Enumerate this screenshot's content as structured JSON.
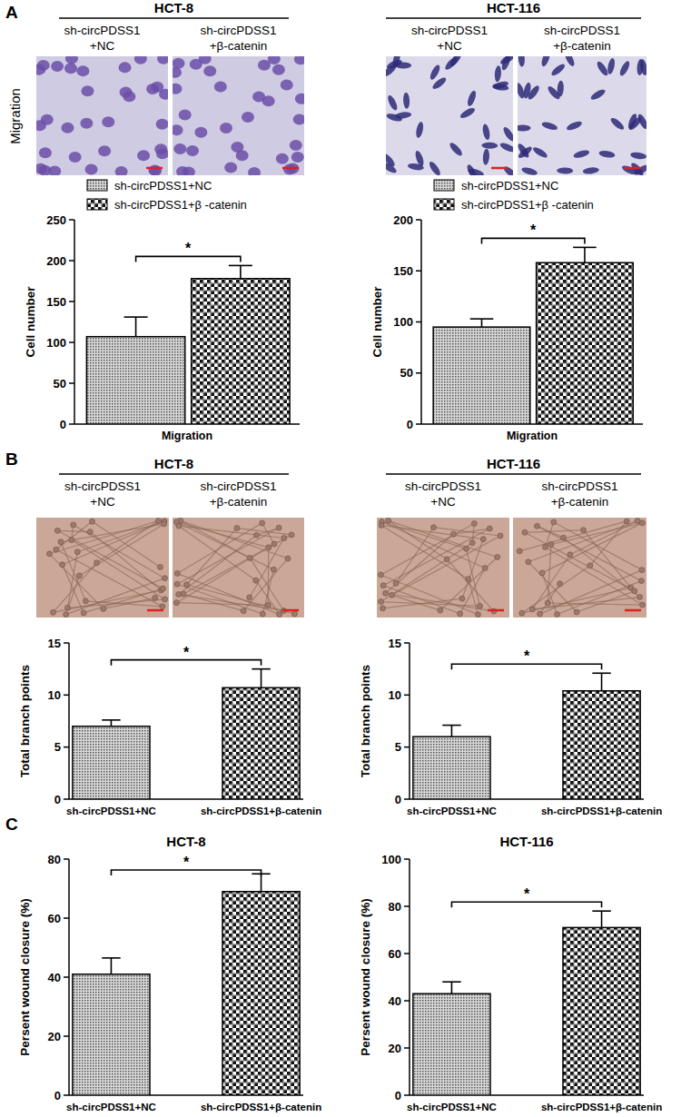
{
  "figure": {
    "panels": [
      {
        "label": "A",
        "row_label": "Migration",
        "groups": [
          {
            "cell_line": "HCT-8",
            "captions": [
              [
                "sh-circPDSS1",
                "+NC"
              ],
              [
                "sh-circPDSS1",
                "+β-catenin"
              ]
            ]
          },
          {
            "cell_line": "HCT-116",
            "captions": [
              [
                "sh-circPDSS1",
                "+NC"
              ],
              [
                "sh-circPDSS1",
                "+β-catenin"
              ]
            ]
          }
        ]
      },
      {
        "label": "B",
        "groups": [
          {
            "cell_line": "HCT-8",
            "captions": [
              [
                "sh-circPDSS1",
                "+NC"
              ],
              [
                "sh-circPDSS1",
                "+β-catenin"
              ]
            ]
          },
          {
            "cell_line": "HCT-116",
            "captions": [
              [
                "sh-circPDSS1",
                "+NC"
              ],
              [
                "sh-circPDSS1",
                "+β-catenin"
              ]
            ]
          }
        ]
      },
      {
        "label": "C"
      }
    ]
  },
  "chart_data": [
    {
      "type": "bar",
      "categories": [
        "Migration"
      ],
      "series": [
        {
          "name": "sh-circPDSS1+NC",
          "color": "#555555",
          "values": [
            107
          ],
          "errors": [
            24
          ]
        },
        {
          "name": "sh-circPDSS1+β -catenin",
          "color": "#111111",
          "values": [
            178
          ],
          "errors": [
            16
          ]
        }
      ],
      "y_label": "Cell number",
      "ylim": [
        0,
        250
      ],
      "yticks": [
        0,
        50,
        100,
        150,
        200,
        250
      ],
      "legend": "top",
      "annotation": "*"
    },
    {
      "type": "bar",
      "categories": [
        "Migration"
      ],
      "series": [
        {
          "name": "sh-circPDSS1+NC",
          "color": "#555555",
          "values": [
            95
          ],
          "errors": [
            8
          ]
        },
        {
          "name": "sh-circPDSS1+β -catenin",
          "color": "#111111",
          "values": [
            158
          ],
          "errors": [
            15
          ]
        }
      ],
      "y_label": "Cell number",
      "ylim": [
        0,
        200
      ],
      "yticks": [
        0,
        50,
        100,
        150,
        200
      ],
      "legend": "top",
      "annotation": "*"
    },
    {
      "type": "bar",
      "categories": [
        "sh-circPDSS1+NC",
        "sh-circPDSS1+β-catenin"
      ],
      "values": [
        7.0,
        10.7
      ],
      "errors": [
        0.6,
        1.8
      ],
      "colors": [
        "#555555",
        "#111111"
      ],
      "y_label": "Total branch points",
      "ylim": [
        0,
        15
      ],
      "yticks": [
        0,
        5,
        10,
        15
      ],
      "annotation": "*"
    },
    {
      "type": "bar",
      "categories": [
        "sh-circPDSS1+NC",
        "sh-circPDSS1+β-catenin"
      ],
      "values": [
        6.0,
        10.4
      ],
      "errors": [
        1.1,
        1.7
      ],
      "colors": [
        "#555555",
        "#111111"
      ],
      "y_label": "Total branch points",
      "ylim": [
        0,
        15
      ],
      "yticks": [
        0,
        5,
        10,
        15
      ],
      "annotation": "*"
    },
    {
      "type": "bar",
      "title": "HCT-8",
      "categories": [
        "sh-circPDSS1+NC",
        "sh-circPDSS1+β-catenin"
      ],
      "values": [
        41,
        69
      ],
      "errors": [
        5.5,
        6
      ],
      "colors": [
        "#555555",
        "#111111"
      ],
      "y_label": "Persent wound closure (%)",
      "ylim": [
        0,
        80
      ],
      "yticks": [
        0,
        20,
        40,
        60,
        80
      ],
      "annotation": "*"
    },
    {
      "type": "bar",
      "title": "HCT-116",
      "categories": [
        "sh-circPDSS1+NC",
        "sh-circPDSS1+β-catenin"
      ],
      "values": [
        43,
        71
      ],
      "errors": [
        5,
        7
      ],
      "colors": [
        "#555555",
        "#111111"
      ],
      "y_label": "Persent wound closure (%)",
      "ylim": [
        0,
        100
      ],
      "yticks": [
        0,
        20,
        40,
        60,
        80,
        100
      ],
      "annotation": "*"
    }
  ]
}
